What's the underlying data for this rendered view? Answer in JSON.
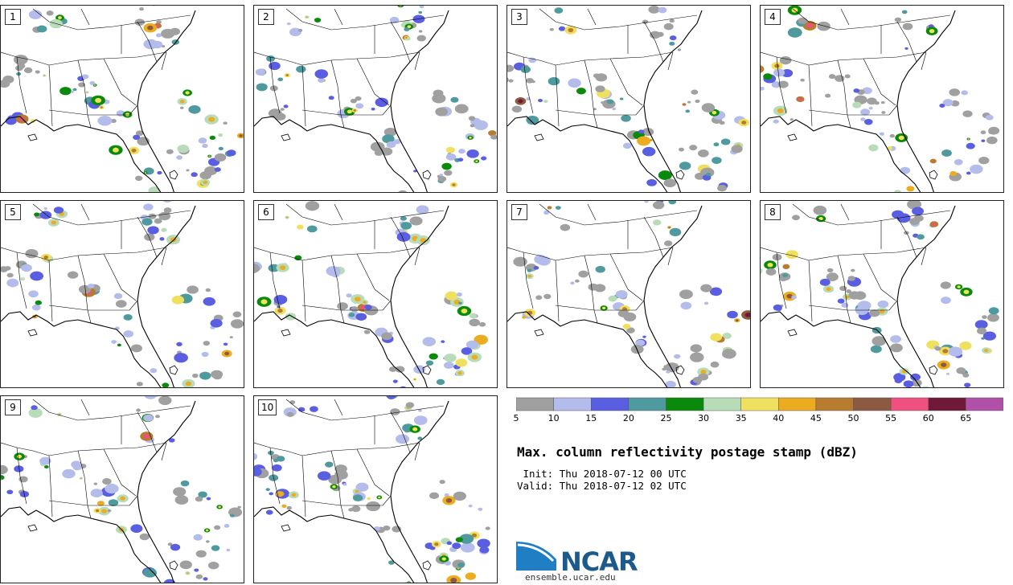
{
  "title": "Max. column reflectivity postage stamp (dBZ)",
  "init_line": " Init: Thu 2018-07-12 00 UTC",
  "valid_line": "Valid: Thu 2018-07-12 02 UTC",
  "members": [
    "1",
    "2",
    "3",
    "4",
    "5",
    "6",
    "7",
    "8",
    "9",
    "10"
  ],
  "colorbar": {
    "ticks": [
      "5",
      "10",
      "15",
      "20",
      "25",
      "30",
      "35",
      "40",
      "45",
      "50",
      "55",
      "60",
      "65"
    ],
    "colors": [
      "#a0a0a0",
      "#b4bcec",
      "#5a5ee0",
      "#4e9a9e",
      "#0a8a0a",
      "#b8dcb8",
      "#f0e060",
      "#ecac20",
      "#b87c30",
      "#8c5a40",
      "#f05080",
      "#701838",
      "#b050a8"
    ]
  },
  "logo": {
    "name": "NCAR",
    "url": "ensemble.ucar.edu"
  }
}
